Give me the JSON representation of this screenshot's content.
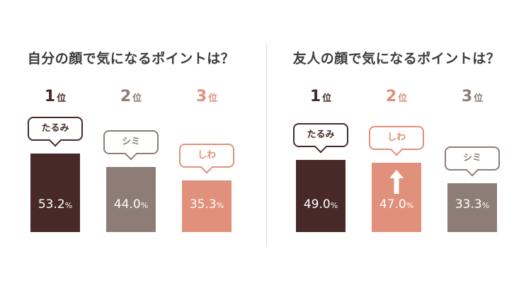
{
  "colors": {
    "rank1": "#472a28",
    "rank_gray": "#8d7d76",
    "rank_pink": "#e0907b"
  },
  "chart_data": [
    {
      "type": "bar",
      "title": "自分の顔で気になるポイントは？",
      "ranks": [
        "1",
        "2",
        "3"
      ],
      "rank_unit": "位",
      "categories": [
        "たるみ",
        "シミ",
        "しわ"
      ],
      "values": [
        53.2,
        44.0,
        35.3
      ],
      "value_labels": [
        "53.2",
        "44.0",
        "35.3"
      ],
      "unit": "%",
      "bar_colors": [
        "#472a28",
        "#8d7d76",
        "#e0907b"
      ]
    },
    {
      "type": "bar",
      "title": "友人の顔で気になるポイントは？",
      "ranks": [
        "1",
        "2",
        "3"
      ],
      "rank_unit": "位",
      "categories": [
        "たるみ",
        "しわ",
        "シミ"
      ],
      "values": [
        49.0,
        47.0,
        33.3
      ],
      "value_labels": [
        "49.0",
        "47.0",
        "33.3"
      ],
      "unit": "%",
      "bar_colors": [
        "#472a28",
        "#e0907b",
        "#8d7d76"
      ],
      "arrow_on": "しわ",
      "arrow_icon": "up-arrow-icon"
    }
  ]
}
